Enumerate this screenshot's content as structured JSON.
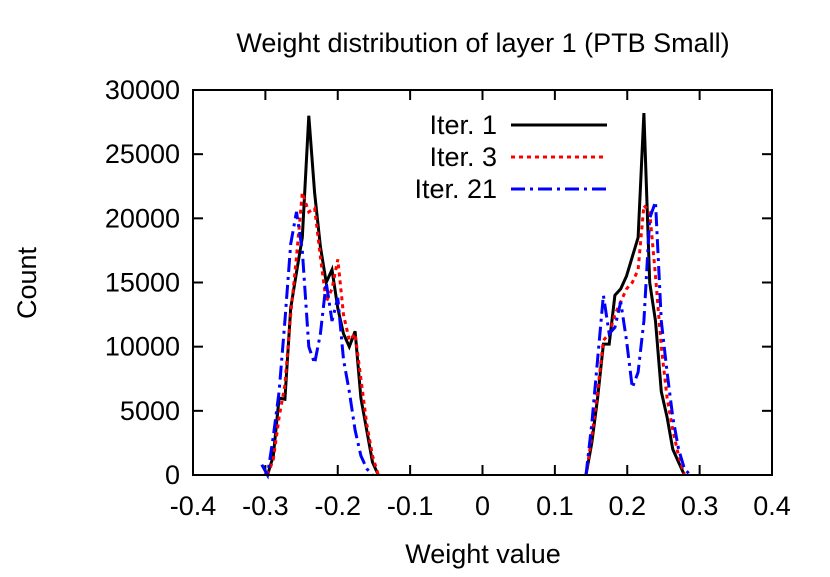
{
  "chart_data": {
    "type": "line",
    "title": "Weight distribution of layer 1 (PTB Small)",
    "xlabel": "Weight value",
    "ylabel": "Count",
    "xlim": [
      -0.4,
      0.4
    ],
    "ylim": [
      0,
      30000
    ],
    "xticks": [
      -0.4,
      -0.3,
      -0.2,
      -0.1,
      0,
      0.1,
      0.2,
      0.3,
      0.4
    ],
    "xtick_labels": [
      "-0.4",
      "-0.3",
      "-0.2",
      "-0.1",
      "0",
      "0.1",
      "0.2",
      "0.3",
      "0.4"
    ],
    "yticks": [
      0,
      5000,
      10000,
      15000,
      20000,
      25000,
      30000
    ],
    "ytick_labels": [
      "0",
      "5000",
      "10000",
      "15000",
      "20000",
      "25000",
      "30000"
    ],
    "grid": false,
    "legend_position": "top-center",
    "series": [
      {
        "name": "Iter. 1",
        "color": "#000000",
        "dash": "solid",
        "segments": [
          [
            [
              -0.297,
              0
            ],
            [
              -0.289,
              1500
            ],
            [
              -0.281,
              6000
            ],
            [
              -0.273,
              5900
            ],
            [
              -0.265,
              13000
            ],
            [
              -0.257,
              15800
            ],
            [
              -0.249,
              18500
            ],
            [
              -0.24,
              28000
            ],
            [
              -0.232,
              22000
            ],
            [
              -0.224,
              17800
            ],
            [
              -0.216,
              15000
            ],
            [
              -0.208,
              16000
            ],
            [
              -0.2,
              13000
            ],
            [
              -0.192,
              11000
            ],
            [
              -0.184,
              10000
            ],
            [
              -0.176,
              11200
            ],
            [
              -0.168,
              6000
            ],
            [
              -0.16,
              3500
            ],
            [
              -0.152,
              1000
            ],
            [
              -0.144,
              0
            ]
          ],
          [
            [
              0.143,
              0
            ],
            [
              0.151,
              2500
            ],
            [
              0.159,
              6000
            ],
            [
              0.167,
              10200
            ],
            [
              0.175,
              10200
            ],
            [
              0.183,
              14000
            ],
            [
              0.191,
              14500
            ],
            [
              0.199,
              15500
            ],
            [
              0.207,
              17000
            ],
            [
              0.215,
              18500
            ],
            [
              0.223,
              28200
            ],
            [
              0.231,
              15000
            ],
            [
              0.239,
              12000
            ],
            [
              0.247,
              6500
            ],
            [
              0.255,
              4500
            ],
            [
              0.263,
              2000
            ],
            [
              0.271,
              1000
            ],
            [
              0.279,
              0
            ]
          ]
        ]
      },
      {
        "name": "Iter. 3",
        "color": "#ff0000",
        "dash": "dotted",
        "segments": [
          [
            [
              -0.297,
              0
            ],
            [
              -0.289,
              1200
            ],
            [
              -0.281,
              4500
            ],
            [
              -0.273,
              7000
            ],
            [
              -0.265,
              12500
            ],
            [
              -0.257,
              17000
            ],
            [
              -0.249,
              22000
            ],
            [
              -0.24,
              20500
            ],
            [
              -0.232,
              20800
            ],
            [
              -0.224,
              17000
            ],
            [
              -0.216,
              13500
            ],
            [
              -0.208,
              14500
            ],
            [
              -0.2,
              16800
            ],
            [
              -0.192,
              12500
            ],
            [
              -0.184,
              10500
            ],
            [
              -0.176,
              11000
            ],
            [
              -0.168,
              7500
            ],
            [
              -0.16,
              4000
            ],
            [
              -0.152,
              1500
            ],
            [
              -0.144,
              0
            ]
          ],
          [
            [
              0.143,
              0
            ],
            [
              0.151,
              3000
            ],
            [
              0.159,
              6500
            ],
            [
              0.167,
              10500
            ],
            [
              0.175,
              11000
            ],
            [
              0.183,
              12500
            ],
            [
              0.191,
              13500
            ],
            [
              0.199,
              14500
            ],
            [
              0.207,
              15000
            ],
            [
              0.215,
              16000
            ],
            [
              0.223,
              21000
            ],
            [
              0.231,
              20500
            ],
            [
              0.239,
              15500
            ],
            [
              0.247,
              10000
            ],
            [
              0.255,
              6000
            ],
            [
              0.263,
              3500
            ],
            [
              0.271,
              1500
            ],
            [
              0.279,
              0
            ]
          ]
        ]
      },
      {
        "name": "Iter. 21",
        "color": "#0000ff",
        "dash": "dashdot",
        "segments": [
          [
            [
              -0.305,
              800
            ],
            [
              -0.297,
              0
            ],
            [
              -0.289,
              3000
            ],
            [
              -0.281,
              6500
            ],
            [
              -0.273,
              12000
            ],
            [
              -0.265,
              18000
            ],
            [
              -0.257,
              20500
            ],
            [
              -0.249,
              17500
            ],
            [
              -0.24,
              10000
            ],
            [
              -0.232,
              8700
            ],
            [
              -0.224,
              11000
            ],
            [
              -0.216,
              15000
            ],
            [
              -0.208,
              12000
            ],
            [
              -0.2,
              13800
            ],
            [
              -0.192,
              9000
            ],
            [
              -0.184,
              6500
            ],
            [
              -0.176,
              3500
            ],
            [
              -0.168,
              1500
            ],
            [
              -0.16,
              500
            ],
            [
              -0.152,
              0
            ]
          ],
          [
            [
              0.143,
              0
            ],
            [
              0.151,
              4000
            ],
            [
              0.159,
              9000
            ],
            [
              0.167,
              14000
            ],
            [
              0.175,
              11000
            ],
            [
              0.183,
              11500
            ],
            [
              0.191,
              13500
            ],
            [
              0.199,
              10500
            ],
            [
              0.207,
              6800
            ],
            [
              0.215,
              8000
            ],
            [
              0.223,
              12000
            ],
            [
              0.231,
              20000
            ],
            [
              0.239,
              21300
            ],
            [
              0.247,
              12000
            ],
            [
              0.255,
              8000
            ],
            [
              0.263,
              4500
            ],
            [
              0.271,
              2000
            ],
            [
              0.279,
              500
            ],
            [
              0.287,
              0
            ]
          ]
        ]
      }
    ]
  }
}
